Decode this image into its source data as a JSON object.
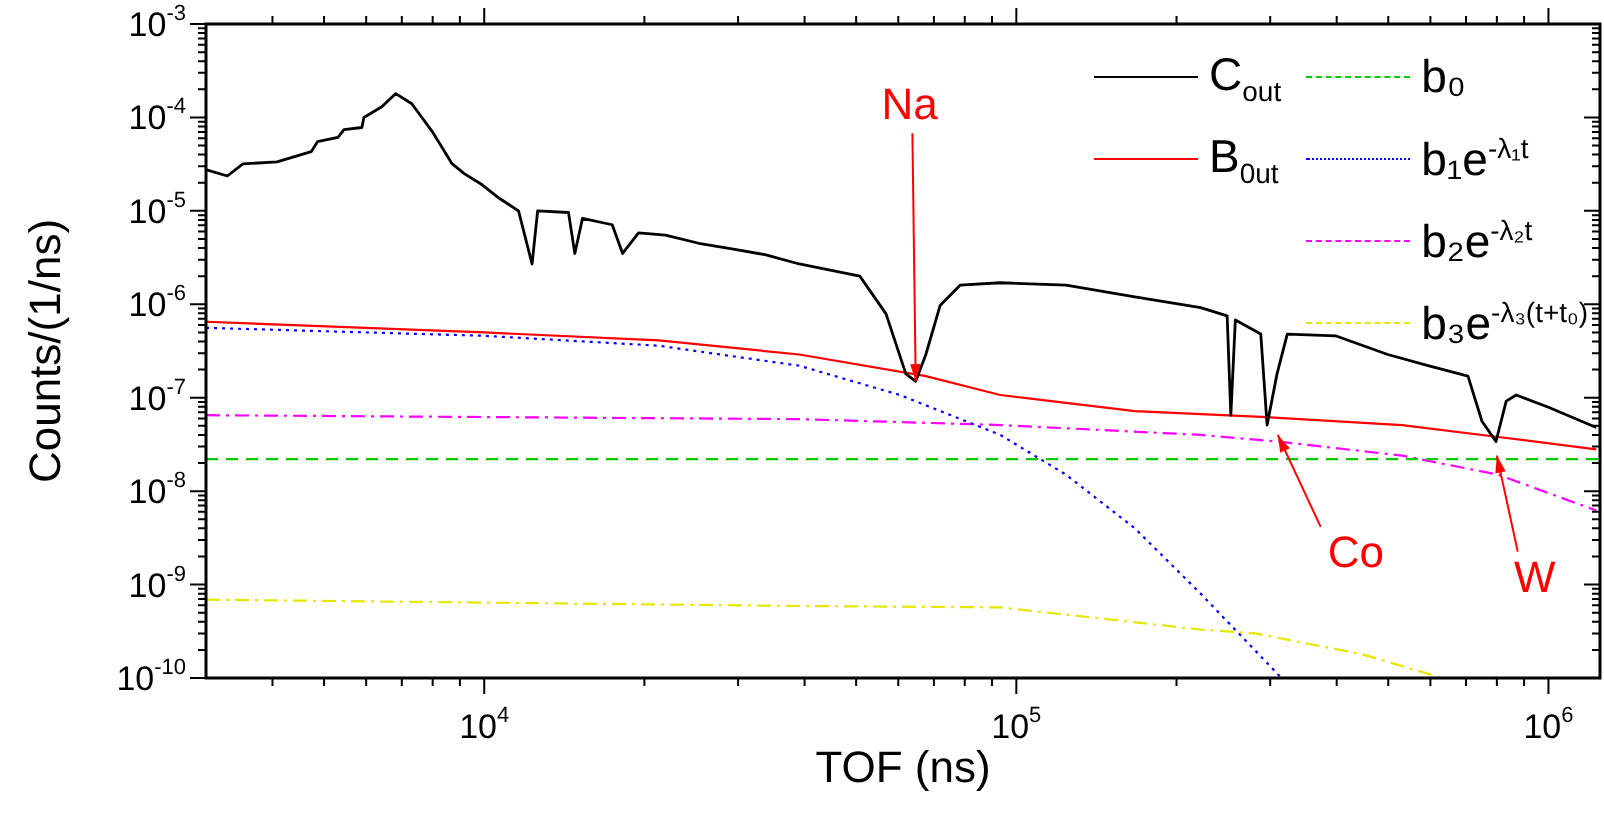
{
  "chart_data": {
    "type": "line",
    "xlabel": "TOF (ns)",
    "ylabel": "Counts/(1/ns)",
    "log": "xy",
    "legend": "top right",
    "marker": "none",
    "xlim": [
      3000,
      1250000
    ],
    "xticks": [
      {
        "value": 4000,
        "label": null
      },
      {
        "value": 5000,
        "label": null
      },
      {
        "value": 6000,
        "label": null
      },
      {
        "value": 7000,
        "label": null
      },
      {
        "value": 8000,
        "label": null
      },
      {
        "value": 9000,
        "label": null
      },
      {
        "value": 10000,
        "label": "10$^{4}$"
      },
      {
        "value": 20000,
        "label": null
      },
      {
        "value": 30000,
        "label": null
      },
      {
        "value": 40000,
        "label": null
      },
      {
        "value": 50000,
        "label": null
      },
      {
        "value": 60000,
        "label": null
      },
      {
        "value": 70000,
        "label": null
      },
      {
        "value": 80000,
        "label": null
      },
      {
        "value": 90000,
        "label": null
      },
      {
        "value": 100000,
        "label": "10$^{5}$"
      },
      {
        "value": 200000,
        "label": null
      },
      {
        "value": 300000,
        "label": null
      },
      {
        "value": 400000,
        "label": null
      },
      {
        "value": 500000,
        "label": null
      },
      {
        "value": 600000,
        "label": null
      },
      {
        "value": 700000,
        "label": null
      },
      {
        "value": 800000,
        "label": null
      },
      {
        "value": 900000,
        "label": null
      },
      {
        "value": 1000000,
        "label": "10$^{6}$"
      }
    ],
    "ylim": [
      1e-10,
      0.001
    ],
    "yticks": [
      {
        "value": 1e-10,
        "label": "10$^{-10}$"
      },
      {
        "value": 2e-10,
        "label": null
      },
      {
        "value": 3e-10,
        "label": null
      },
      {
        "value": 4e-10,
        "label": null
      },
      {
        "value": 5e-10,
        "label": null
      },
      {
        "value": 6e-10,
        "label": null
      },
      {
        "value": 7e-10,
        "label": null
      },
      {
        "value": 8e-10,
        "label": null
      },
      {
        "value": 9e-10,
        "label": null
      },
      {
        "value": 1e-09,
        "label": "10$^{-9}$"
      },
      {
        "value": 2e-09,
        "label": null
      },
      {
        "value": 3e-09,
        "label": null
      },
      {
        "value": 4e-09,
        "label": null
      },
      {
        "value": 5e-09,
        "label": null
      },
      {
        "value": 6e-09,
        "label": null
      },
      {
        "value": 7e-09,
        "label": null
      },
      {
        "value": 8e-09,
        "label": null
      },
      {
        "value": 9e-09,
        "label": null
      },
      {
        "value": 1e-08,
        "label": "10$^{-8}$"
      },
      {
        "value": 2e-08,
        "label": null
      },
      {
        "value": 3e-08,
        "label": null
      },
      {
        "value": 4e-08,
        "label": null
      },
      {
        "value": 5e-08,
        "label": null
      },
      {
        "value": 6e-08,
        "label": null
      },
      {
        "value": 7e-08,
        "label": null
      },
      {
        "value": 8e-08,
        "label": null
      },
      {
        "value": 9e-08,
        "label": null
      },
      {
        "value": 1e-07,
        "label": "10$^{-7}$"
      },
      {
        "value": 2e-07,
        "label": null
      },
      {
        "value": 3e-07,
        "label": null
      },
      {
        "value": 4e-07,
        "label": null
      },
      {
        "value": 5e-07,
        "label": null
      },
      {
        "value": 6e-07,
        "label": null
      },
      {
        "value": 7e-07,
        "label": null
      },
      {
        "value": 8e-07,
        "label": null
      },
      {
        "value": 9e-07,
        "label": null
      },
      {
        "value": 1e-06,
        "label": "10$^{-6}$"
      },
      {
        "value": 2e-06,
        "label": null
      },
      {
        "value": 3e-06,
        "label": null
      },
      {
        "value": 4e-06,
        "label": null
      },
      {
        "value": 5e-06,
        "label": null
      },
      {
        "value": 6e-06,
        "label": null
      },
      {
        "value": 7e-06,
        "label": null
      },
      {
        "value": 8e-06,
        "label": null
      },
      {
        "value": 9e-06,
        "label": null
      },
      {
        "value": 1e-05,
        "label": "10$^{-5}$"
      },
      {
        "value": 2e-05,
        "label": null
      },
      {
        "value": 3e-05,
        "label": null
      },
      {
        "value": 4e-05,
        "label": null
      },
      {
        "value": 5e-05,
        "label": null
      },
      {
        "value": 6e-05,
        "label": null
      },
      {
        "value": 7e-05,
        "label": null
      },
      {
        "value": 8e-05,
        "label": null
      },
      {
        "value": 9e-05,
        "label": null
      },
      {
        "value": 0.0001,
        "label": "10$^{-4}$"
      },
      {
        "value": 0.0002,
        "label": null
      },
      {
        "value": 0.0003,
        "label": null
      },
      {
        "value": 0.0004,
        "label": null
      },
      {
        "value": 0.0005,
        "label": null
      },
      {
        "value": 0.0006,
        "label": null
      },
      {
        "value": 0.0007,
        "label": null
      },
      {
        "value": 0.0008,
        "label": null
      },
      {
        "value": 0.0009,
        "label": null
      },
      {
        "value": 0.001,
        "label": "10$^{-3}$"
      }
    ],
    "series": [
      {
        "name": "C$_{out}$",
        "color": "#000000",
        "line_style": "solid",
        "x": [
          3010,
          3290,
          3520,
          4080,
          4730,
          4860,
          5310,
          5450,
          5890,
          5940,
          6420,
          6820,
          7310,
          7980,
          8700,
          9170,
          9910,
          10600,
          11600,
          12300,
          12600,
          14400,
          14800,
          15300,
          17400,
          18200,
          19500,
          21900,
          25300,
          29400,
          33700,
          39100,
          50800,
          56900,
          62000,
          64700,
          67600,
          71900,
          78400,
          93300,
          124000,
          167000,
          222000,
          249000,
          253000,
          258000,
          288000,
          296000,
          309000,
          323000,
          398000,
          499000,
          594000,
          706000,
          750000,
          797000,
          833000,
          870000,
          1000000,
          1230000
        ],
        "values": [
          2.74e-05,
          2.36e-05,
          3.18e-05,
          3.35e-05,
          4.3e-05,
          5.5e-05,
          6.1e-05,
          7.4e-05,
          7.8e-05,
          0.0001,
          0.00013,
          0.00018,
          0.00014,
          7.1e-05,
          3.2e-05,
          2.5e-05,
          1.9e-05,
          1.4e-05,
          1e-05,
          2.7e-06,
          1e-05,
          9.6e-06,
          3.5e-06,
          8.3e-06,
          7.1e-06,
          3.5e-06,
          5.8e-06,
          5.5e-06,
          4.5e-06,
          3.9e-06,
          3.4e-06,
          2.7e-06,
          2e-06,
          7.9e-07,
          1.8e-07,
          1.5e-07,
          2.9e-07,
          9.7e-07,
          1.6e-06,
          1.7e-06,
          1.6e-06,
          1.2e-06,
          9.2e-07,
          7.5e-07,
          6.5e-08,
          6.8e-07,
          4.8e-07,
          5.1e-08,
          1.8e-07,
          4.8e-07,
          4.6e-07,
          2.9e-07,
          2.2e-07,
          1.7e-07,
          5.6e-08,
          3.4e-08,
          9.2e-08,
          1.07e-07,
          7.9e-08,
          4.8e-08
        ]
      },
      {
        "name": "B$_{0ut}$",
        "color": "#ff0000",
        "line_style": "solid",
        "x": [
          3000,
          10000,
          21300,
          39100,
          67600,
          93300,
          167000,
          296000,
          531000,
          805000,
          1230000
        ],
        "values": [
          6.5e-07,
          5e-07,
          4.1e-07,
          2.9e-07,
          1.7e-07,
          1.07e-07,
          7.2e-08,
          6.2e-08,
          5.1e-08,
          3.8e-08,
          2.8e-08
        ]
      },
      {
        "name": "b₀",
        "color": "#00cc00",
        "line_style": "dashed",
        "x": [
          3000,
          1250000
        ],
        "values": [
          2.2e-08,
          2.2e-08
        ]
      },
      {
        "name": "b₁e$^{-λ₁t}$",
        "color": "#0000ff",
        "line_style": "dotted",
        "x": [
          3000,
          10000,
          21300,
          39100,
          60400,
          93300,
          124000,
          167000,
          222000,
          315000
        ],
        "values": [
          5.6e-07,
          4.6e-07,
          3.6e-07,
          2.2e-07,
          1.07e-07,
          4e-08,
          1.5e-08,
          4e-09,
          8e-10,
          1e-10
        ]
      },
      {
        "name": "b₂e$^{-λ₂t}$",
        "color": "#ff00ff",
        "line_style": "dashdot",
        "x": [
          3000,
          39100,
          93300,
          222000,
          309000,
          531000,
          805000,
          1230000
        ],
        "values": [
          6.5e-08,
          5.9e-08,
          5.1e-08,
          4e-08,
          3.4e-08,
          2.4e-08,
          1.5e-08,
          6.2e-09
        ]
      },
      {
        "name": "b₃e$^{-λ₃(t+t₀)}$",
        "color": "#e6e600",
        "line_style": "dashdot",
        "x": [
          3000,
          39100,
          93300,
          222000,
          281000,
          446000,
          631000
        ],
        "values": [
          6.9e-10,
          5.9e-10,
          5.7e-10,
          3.3e-10,
          3e-10,
          1.8e-10,
          1e-10
        ]
      }
    ],
    "annotations": [
      {
        "text": "Na",
        "x": 64700,
        "y": 1.5e-07
      },
      {
        "text": "Co",
        "x": 310000,
        "y": 4e-08
      },
      {
        "text": "W",
        "x": 800000,
        "y": 2.4e-08
      }
    ]
  }
}
